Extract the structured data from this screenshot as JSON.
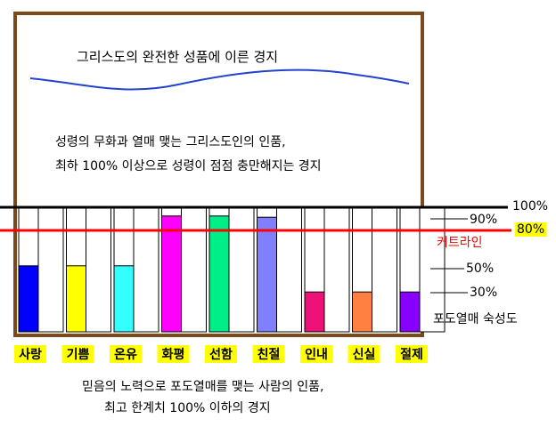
{
  "texts": {
    "top_title": "그리스도의 완전한 성품에 이른 경지",
    "middle_line1": "성령의 무화과 열매 맺는 그리스도인의 인품,",
    "middle_line2": "최하 100% 이상으로 성령이 점점 충만해지는 경지",
    "bottom_line1": "믿음의 노력으로 포도열매를 맺는 사람의 인품,",
    "bottom_line2": "최고 한계치 100% 이하의 경지",
    "label_100": "100%",
    "label_90": "90%",
    "label_80": "80%",
    "label_cutline": "커트라인",
    "label_50": "50%",
    "label_30": "30%",
    "legend": "포도열매 숙성도"
  },
  "colors": {
    "frame": "#7a4a1a",
    "wave": "#2244cc",
    "line_100": "#000000",
    "cutline": "#ff0000",
    "category_label_bg": "#ffff00"
  },
  "chart_data": {
    "type": "bar",
    "categories": [
      "사랑",
      "기쁨",
      "온유",
      "화평",
      "선함",
      "친절",
      "인내",
      "신실",
      "절제"
    ],
    "values": [
      53,
      53,
      53,
      93,
      93,
      92,
      32,
      32,
      32
    ],
    "colors": [
      "#0000ff",
      "#ffff00",
      "#33ffff",
      "#ff00ff",
      "#00ee88",
      "#8080ff",
      "#ee1177",
      "#ff8040",
      "#8800ff"
    ],
    "ylim": [
      0,
      100
    ],
    "reference_lines": [
      {
        "value": 100,
        "label": "100%"
      },
      {
        "value": 90,
        "label": "90%"
      },
      {
        "value": 80,
        "label": "80%"
      },
      {
        "value": 50,
        "label": "50%"
      },
      {
        "value": 30,
        "label": "30%"
      }
    ]
  }
}
